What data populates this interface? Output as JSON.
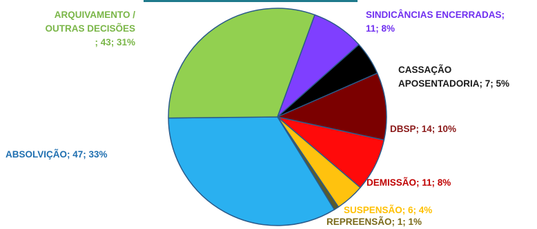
{
  "chart_data": {
    "type": "pie",
    "start_angle_deg": 20,
    "direction": "clockwise",
    "slices": [
      {
        "name": "SINDICÂNCIAS ENCERRADAS",
        "value": 11,
        "percent": "8%",
        "color": "#7f3fff",
        "label_color": "#7030f0",
        "label_lines": [
          "SINDICÂNCIAS ENCERRADAS;",
          "11; 8%"
        ]
      },
      {
        "name": "CASSAÇÃO APOSENTADORIA",
        "value": 7,
        "percent": "5%",
        "color": "#000000",
        "label_color": "#1a1a1a",
        "label_lines": [
          "CASSAÇÃO",
          "APOSENTADORIA; 7; 5%"
        ]
      },
      {
        "name": "DBSP",
        "value": 14,
        "percent": "10%",
        "color": "#7b0000",
        "label_color": "#8b1a1a",
        "label_lines": [
          "DBSP; 14; 10%"
        ]
      },
      {
        "name": "DEMISSÃO",
        "value": 11,
        "percent": "8%",
        "color": "#ff0a0a",
        "label_color": "#c00000",
        "label_lines": [
          "DEMISSÃO; 11; 8%"
        ]
      },
      {
        "name": "SUSPENSÃO",
        "value": 6,
        "percent": "4%",
        "color": "#ffc20e",
        "label_color": "#ffc000",
        "label_lines": [
          "SUSPENSÃO; 6; 4%"
        ]
      },
      {
        "name": "REPREENSÃO",
        "value": 1,
        "percent": "1%",
        "color": "#595b2b",
        "label_color": "#7a6a1a",
        "label_lines": [
          "REPREENSÃO; 1; 1%"
        ]
      },
      {
        "name": "ABSOLVIÇÃO",
        "value": 47,
        "percent": "33%",
        "color": "#2ab0f0",
        "label_color": "#1f6fb0",
        "label_lines": [
          "ABSOLVIÇÃO; 47; 33%"
        ]
      },
      {
        "name": "ARQUIVAMENTO / OUTRAS DECISÕES",
        "value": 43,
        "percent": "31%",
        "color": "#92d050",
        "label_color": "#7ab648",
        "label_lines": [
          "ARQUIVAMENTO /",
          "OUTRAS DECISÕES",
          "; 43; 31%"
        ]
      }
    ]
  }
}
